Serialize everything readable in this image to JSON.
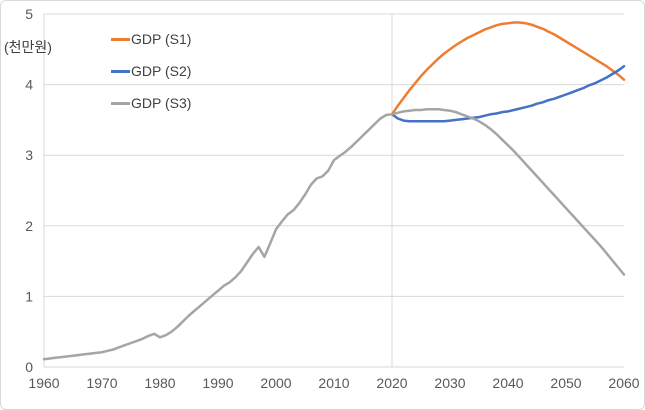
{
  "chart": {
    "y_unit_label": "(천만원)",
    "colors": {
      "series_s1": "#ED7D31",
      "series_s2": "#4472C4",
      "series_s3": "#A5A5A5",
      "gridline": "#D9D9D9",
      "axis_line": "#D9D9D9",
      "tick_text": "#595959",
      "legend_text": "#404040",
      "background": "#FFFFFF",
      "border": "#D9D9D9"
    }
  },
  "chart_data": {
    "type": "line",
    "title": "",
    "xlabel": "",
    "ylabel": "(천만원)",
    "xlim": [
      1960,
      2060
    ],
    "ylim": [
      0,
      5
    ],
    "x_ticks": [
      1960,
      1970,
      1980,
      1990,
      2000,
      2010,
      2020,
      2030,
      2040,
      2050,
      2060
    ],
    "y_ticks": [
      0,
      1,
      2,
      3,
      4,
      5
    ],
    "grid": {
      "horizontal": true,
      "vertical": false,
      "vertical_line_at_x": 2020
    },
    "legend_position": "top-left-inside",
    "series": [
      {
        "name": "GDP (S1)",
        "color": "#ED7D31",
        "x_start": 2020,
        "x_step": 1,
        "values": [
          3.58,
          3.7,
          3.81,
          3.92,
          4.02,
          4.12,
          4.21,
          4.29,
          4.37,
          4.44,
          4.5,
          4.56,
          4.61,
          4.66,
          4.7,
          4.74,
          4.78,
          4.81,
          4.84,
          4.86,
          4.87,
          4.88,
          4.88,
          4.87,
          4.85,
          4.82,
          4.79,
          4.75,
          4.71,
          4.66,
          4.61,
          4.56,
          4.51,
          4.46,
          4.41,
          4.36,
          4.31,
          4.26,
          4.2,
          4.14,
          4.07
        ]
      },
      {
        "name": "GDP (S2)",
        "color": "#4472C4",
        "x_start": 2020,
        "x_step": 1,
        "values": [
          3.58,
          3.52,
          3.49,
          3.48,
          3.48,
          3.48,
          3.48,
          3.48,
          3.48,
          3.48,
          3.49,
          3.5,
          3.51,
          3.52,
          3.53,
          3.54,
          3.56,
          3.58,
          3.59,
          3.61,
          3.62,
          3.64,
          3.66,
          3.68,
          3.7,
          3.73,
          3.75,
          3.78,
          3.8,
          3.83,
          3.86,
          3.89,
          3.92,
          3.95,
          3.99,
          4.02,
          4.06,
          4.1,
          4.15,
          4.2,
          4.26
        ]
      },
      {
        "name": "GDP (S3)",
        "color": "#A5A5A5",
        "x_start": 1960,
        "x_step": 1,
        "values": [
          0.11,
          0.12,
          0.13,
          0.14,
          0.15,
          0.16,
          0.17,
          0.18,
          0.19,
          0.2,
          0.21,
          0.23,
          0.25,
          0.28,
          0.31,
          0.34,
          0.37,
          0.4,
          0.44,
          0.47,
          0.42,
          0.45,
          0.5,
          0.57,
          0.65,
          0.73,
          0.8,
          0.87,
          0.94,
          1.01,
          1.08,
          1.15,
          1.2,
          1.27,
          1.36,
          1.48,
          1.6,
          1.7,
          1.56,
          1.75,
          1.95,
          2.06,
          2.16,
          2.22,
          2.32,
          2.44,
          2.58,
          2.67,
          2.7,
          2.78,
          2.93,
          2.99,
          3.05,
          3.12,
          3.2,
          3.28,
          3.36,
          3.44,
          3.52,
          3.57,
          3.58,
          3.6,
          3.62,
          3.63,
          3.64,
          3.64,
          3.65,
          3.65,
          3.65,
          3.64,
          3.63,
          3.61,
          3.58,
          3.55,
          3.52,
          3.48,
          3.43,
          3.37,
          3.3,
          3.22,
          3.14,
          3.06,
          2.97,
          2.88,
          2.79,
          2.7,
          2.61,
          2.52,
          2.43,
          2.34,
          2.25,
          2.16,
          2.07,
          1.98,
          1.89,
          1.8,
          1.71,
          1.61,
          1.51,
          1.41,
          1.31
        ]
      }
    ]
  }
}
